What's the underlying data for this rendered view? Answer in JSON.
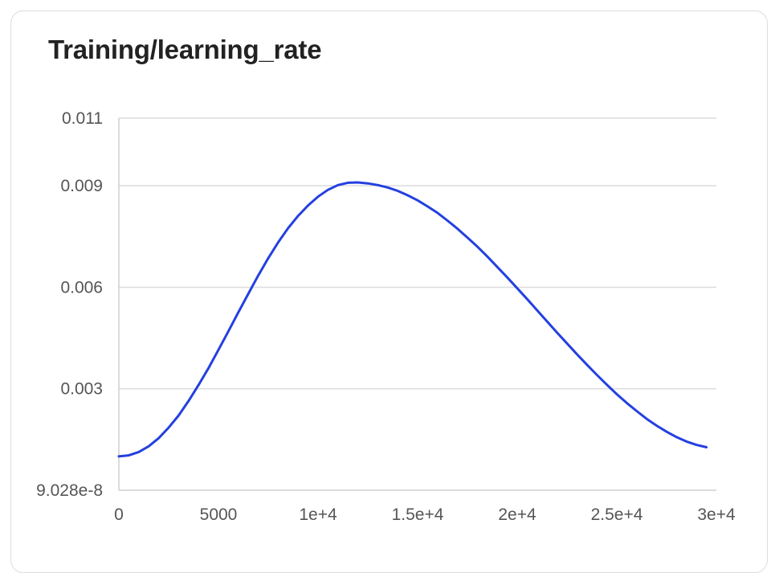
{
  "chart_data": {
    "type": "line",
    "title": "Training/learning_rate",
    "xlabel": "",
    "ylabel": "",
    "xlim": [
      0,
      30000
    ],
    "ylim": [
      0,
      0.011
    ],
    "grid": true,
    "legend": "none",
    "x_ticks": [
      {
        "value": 0,
        "label": "0"
      },
      {
        "value": 5000,
        "label": "5000"
      },
      {
        "value": 10000,
        "label": "1e+4"
      },
      {
        "value": 15000,
        "label": "1.5e+4"
      },
      {
        "value": 20000,
        "label": "2e+4"
      },
      {
        "value": 25000,
        "label": "2.5e+4"
      },
      {
        "value": 30000,
        "label": "3e+4"
      }
    ],
    "y_ticks": [
      {
        "value": 9.028e-08,
        "label": "9.028e-8"
      },
      {
        "value": 0.003,
        "label": "0.003"
      },
      {
        "value": 0.006,
        "label": "0.006"
      },
      {
        "value": 0.009,
        "label": "0.009"
      },
      {
        "value": 0.011,
        "label": "0.011"
      }
    ],
    "series": [
      {
        "color": "#2440e0",
        "x": [
          0,
          500,
          1000,
          1500,
          2000,
          2500,
          3000,
          3500,
          4000,
          4500,
          5000,
          5500,
          6000,
          6500,
          7000,
          7500,
          8000,
          8500,
          9000,
          9500,
          10000,
          10500,
          11000,
          11500,
          12000,
          12500,
          13000,
          13500,
          14000,
          14500,
          15000,
          15500,
          16000,
          16500,
          17000,
          17500,
          18000,
          18500,
          19000,
          19500,
          20000,
          20500,
          21000,
          21500,
          22000,
          22500,
          23000,
          23500,
          24000,
          24500,
          25000,
          25500,
          26000,
          26500,
          27000,
          27500,
          28000,
          28500,
          29000,
          29500
        ],
        "y": [
          0.001,
          0.00103,
          0.00113,
          0.0013,
          0.00154,
          0.00185,
          0.00221,
          0.00264,
          0.00311,
          0.00361,
          0.00415,
          0.0047,
          0.00526,
          0.00581,
          0.00635,
          0.00686,
          0.00733,
          0.00775,
          0.00811,
          0.00842,
          0.00868,
          0.00888,
          0.00902,
          0.00909,
          0.0091,
          0.00907,
          0.00902,
          0.00895,
          0.00885,
          0.00872,
          0.00857,
          0.00839,
          0.0082,
          0.00797,
          0.00773,
          0.00747,
          0.0072,
          0.00691,
          0.0066,
          0.00629,
          0.00597,
          0.00565,
          0.00532,
          0.00499,
          0.00466,
          0.00434,
          0.00402,
          0.00371,
          0.00341,
          0.00312,
          0.00284,
          0.00258,
          0.00234,
          0.00211,
          0.00191,
          0.00173,
          0.00157,
          0.00144,
          0.00134,
          0.00127
        ]
      }
    ]
  }
}
